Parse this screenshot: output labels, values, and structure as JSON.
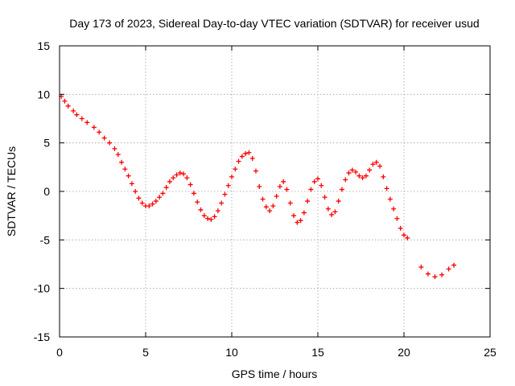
{
  "chart_data": {
    "type": "scatter",
    "title": "Day 173 of 2023, Sidereal Day-to-day VTEC variation (SDTVAR) for receiver usud",
    "xlabel": "GPS time / hours",
    "ylabel": "SDTVAR / TECUs",
    "xlim": [
      0,
      25
    ],
    "ylim": [
      -15,
      15
    ],
    "xticks": [
      0,
      5,
      10,
      15,
      20,
      25
    ],
    "yticks": [
      -15,
      -10,
      -5,
      0,
      5,
      10,
      15
    ],
    "grid": true,
    "marker": "+",
    "series": [
      {
        "name": "SDTVAR",
        "color": "#ff0000",
        "x": [
          0.1,
          0.3,
          0.5,
          0.8,
          1.0,
          1.3,
          1.6,
          2.0,
          2.3,
          2.6,
          2.9,
          3.2,
          3.4,
          3.6,
          3.8,
          4.0,
          4.2,
          4.4,
          4.6,
          4.8,
          5.0,
          5.2,
          5.4,
          5.6,
          5.8,
          6.0,
          6.2,
          6.4,
          6.6,
          6.8,
          7.0,
          7.2,
          7.4,
          7.6,
          7.8,
          8.0,
          8.2,
          8.4,
          8.6,
          8.8,
          9.0,
          9.2,
          9.4,
          9.6,
          9.8,
          10.0,
          10.2,
          10.4,
          10.6,
          10.8,
          11.0,
          11.2,
          11.4,
          11.6,
          11.8,
          12.0,
          12.2,
          12.4,
          12.6,
          12.8,
          13.0,
          13.2,
          13.4,
          13.6,
          13.8,
          14.0,
          14.2,
          14.4,
          14.6,
          14.8,
          15.0,
          15.2,
          15.4,
          15.6,
          15.8,
          16.0,
          16.2,
          16.4,
          16.6,
          16.8,
          17.0,
          17.2,
          17.4,
          17.6,
          17.8,
          18.0,
          18.2,
          18.4,
          18.6,
          18.8,
          19.0,
          19.2,
          19.4,
          19.6,
          19.8,
          20.0,
          20.2,
          21.0,
          21.4,
          21.8,
          22.2,
          22.6,
          22.9
        ],
        "y": [
          9.8,
          9.3,
          8.8,
          8.3,
          7.9,
          7.5,
          7.1,
          6.6,
          6.1,
          5.5,
          5.0,
          4.4,
          3.8,
          3.0,
          2.3,
          1.6,
          0.8,
          0.0,
          -0.7,
          -1.2,
          -1.5,
          -1.5,
          -1.3,
          -1.0,
          -0.6,
          -0.2,
          0.4,
          1.0,
          1.4,
          1.7,
          1.9,
          1.8,
          1.4,
          0.7,
          -0.2,
          -1.1,
          -1.9,
          -2.5,
          -2.8,
          -2.9,
          -2.6,
          -2.0,
          -1.2,
          -0.3,
          0.6,
          1.5,
          2.3,
          3.1,
          3.6,
          3.9,
          4.0,
          3.4,
          2.1,
          0.5,
          -0.8,
          -1.6,
          -2.0,
          -1.5,
          -0.5,
          0.5,
          1.0,
          0.2,
          -1.2,
          -2.5,
          -3.2,
          -3.0,
          -2.2,
          -1.0,
          0.2,
          1.0,
          1.3,
          0.6,
          -0.6,
          -1.8,
          -2.4,
          -2.1,
          -1.0,
          0.2,
          1.2,
          1.9,
          2.2,
          2.0,
          1.6,
          1.4,
          1.6,
          2.2,
          2.8,
          3.0,
          2.6,
          1.5,
          0.3,
          -0.8,
          -1.8,
          -2.8,
          -3.8,
          -4.5,
          -4.8,
          -7.8,
          -8.5,
          -8.8,
          -8.6,
          -8.0,
          -7.6
        ]
      }
    ]
  }
}
